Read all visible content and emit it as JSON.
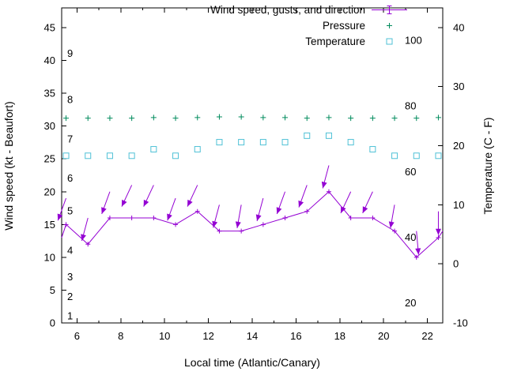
{
  "chart_data": {
    "type": "line",
    "title": "",
    "xlabel": "Local time (Atlantic/Canary)",
    "ylabel_left": "Wind speed (kt - Beaufort)",
    "ylabel_right": "Temperature (C - F)",
    "xlim": [
      5.3,
      22.7
    ],
    "ylim_left": [
      0,
      48
    ],
    "ylim_right": [
      -10,
      43.333
    ],
    "grid": false,
    "x_major_ticks": [
      6,
      8,
      10,
      12,
      14,
      16,
      18,
      20,
      22
    ],
    "x_minor_ticks": [
      7,
      9,
      11,
      13,
      15,
      17,
      19,
      21
    ],
    "y_left_ticks": [
      0,
      5,
      10,
      15,
      20,
      25,
      30,
      35,
      40,
      45
    ],
    "y_right_ticks": [
      -10,
      0,
      10,
      20,
      30,
      40
    ],
    "beaufort_scale_labels": [
      {
        "text": "1",
        "kt": 1
      },
      {
        "text": "2",
        "kt": 4
      },
      {
        "text": "3",
        "kt": 7
      },
      {
        "text": "4",
        "kt": 11
      },
      {
        "text": "5",
        "kt": 17
      },
      {
        "text": "6",
        "kt": 22
      },
      {
        "text": "7",
        "kt": 28
      },
      {
        "text": "8",
        "kt": 34
      },
      {
        "text": "9",
        "kt": 41
      }
    ],
    "fahrenheit_scale_labels": [
      {
        "text": "20",
        "f": 20
      },
      {
        "text": "40",
        "f": 40
      },
      {
        "text": "60",
        "f": 60
      },
      {
        "text": "80",
        "f": 80
      },
      {
        "text": "100",
        "f": 100
      }
    ],
    "x": [
      5.5,
      6.5,
      7.5,
      8.5,
      9.5,
      10.5,
      11.5,
      12.5,
      13.5,
      14.5,
      15.5,
      16.5,
      17.5,
      18.5,
      19.5,
      20.5,
      21.5,
      22.5
    ],
    "series": {
      "wind_speed_kt": [
        15,
        12,
        16,
        16,
        16,
        15,
        17,
        14,
        14,
        15,
        16,
        17,
        20,
        16,
        16,
        14,
        10,
        13
      ],
      "gust_kt": [
        19,
        16,
        20,
        21,
        21,
        19,
        21,
        18,
        18,
        19,
        20,
        21,
        24,
        20,
        20,
        18,
        14,
        17
      ],
      "gust_direction_deg": [
        200,
        195,
        200,
        205,
        205,
        200,
        205,
        195,
        190,
        195,
        200,
        200,
        195,
        205,
        205,
        190,
        175,
        180
      ],
      "pressure_y_kt": [
        31.2,
        31.2,
        31.2,
        31.2,
        31.3,
        31.2,
        31.3,
        31.4,
        31.4,
        31.3,
        31.3,
        31.2,
        31.3,
        31.2,
        31.2,
        31.2,
        31.2,
        31.3
      ],
      "temperature_c": [
        18.3,
        18.3,
        18.3,
        18.3,
        19.4,
        18.3,
        19.4,
        20.6,
        20.6,
        20.6,
        20.6,
        21.7,
        21.7,
        20.6,
        19.4,
        18.3,
        18.3,
        18.3
      ]
    },
    "wind_line_edges": {
      "start": [
        5.3,
        13
      ],
      "end": [
        22.7,
        14
      ]
    },
    "legend": {
      "position": "top-right",
      "entries": [
        {
          "label": "Wind speed, gusts, and direction",
          "series": "wind",
          "sample": "errorline"
        },
        {
          "label": "Pressure",
          "series": "pressure",
          "sample": "plus"
        },
        {
          "label": "Temperature",
          "series": "temperature",
          "sample": "square"
        }
      ]
    },
    "colors": {
      "wind": "#9400d3",
      "pressure": "#008b5c",
      "temperature": "#4fc1d6",
      "axis": "#000000",
      "text": "#000000"
    }
  }
}
